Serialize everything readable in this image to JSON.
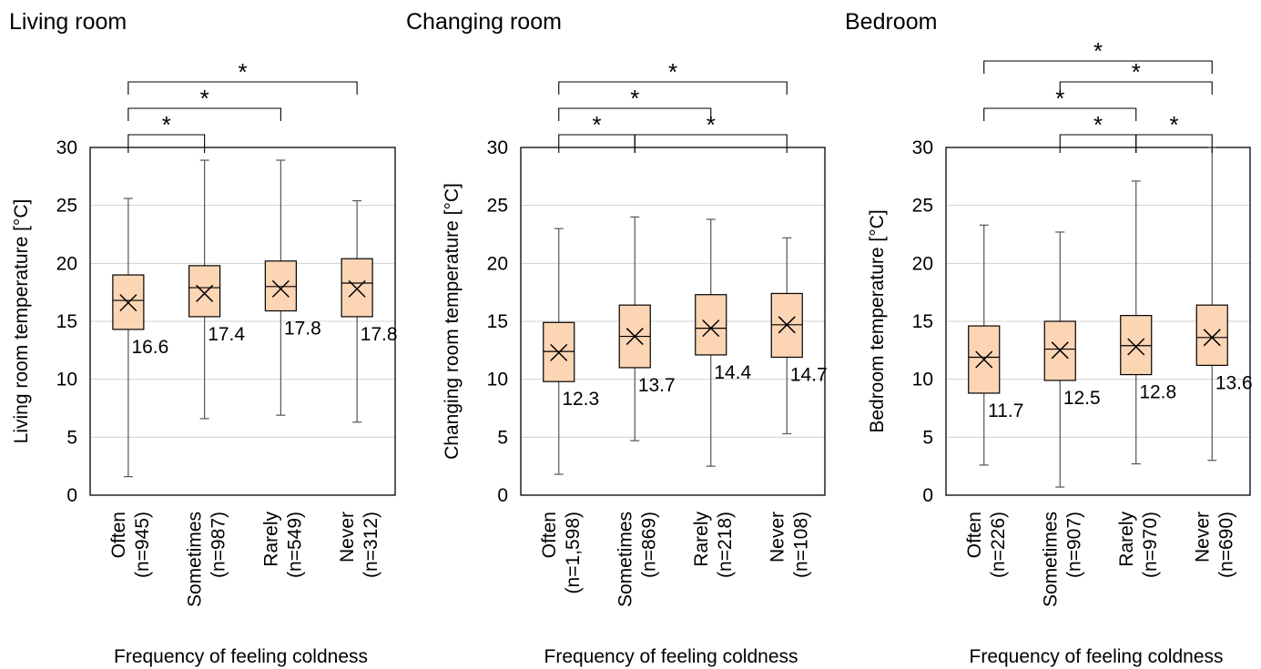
{
  "chart_data": [
    {
      "type": "box",
      "title": "Living room",
      "ylabel": "Living room temperature [°C]",
      "xlabel": "Frequency of feeling coldness",
      "ylim": [
        0,
        30
      ],
      "yticks": [
        "0",
        "5",
        "10",
        "15",
        "20",
        "25",
        "30"
      ],
      "grid": true,
      "categories": [
        {
          "name": "Often",
          "n": "(n=945)",
          "min": 1.6,
          "q1": 14.3,
          "median": 16.8,
          "q3": 19.0,
          "max": 25.6,
          "mean": 16.6,
          "mean_label": "16.6"
        },
        {
          "name": "Sometimes",
          "n": "(n=987)",
          "min": 6.6,
          "q1": 15.4,
          "median": 17.9,
          "q3": 19.8,
          "max": 28.9,
          "mean": 17.4,
          "mean_label": "17.4"
        },
        {
          "name": "Rarely",
          "n": "(n=549)",
          "min": 6.9,
          "q1": 15.9,
          "median": 18.0,
          "q3": 20.2,
          "max": 28.9,
          "mean": 17.8,
          "mean_label": "17.8"
        },
        {
          "name": "Never",
          "n": "(n=312)",
          "min": 6.3,
          "q1": 15.4,
          "median": 18.3,
          "q3": 20.4,
          "max": 25.4,
          "mean": 17.8,
          "mean_label": "17.8"
        }
      ],
      "significance": [
        {
          "from": 0,
          "to": 1,
          "label": "*"
        },
        {
          "from": 0,
          "to": 2,
          "label": "*"
        },
        {
          "from": 0,
          "to": 3,
          "label": "*"
        }
      ]
    },
    {
      "type": "box",
      "title": "Changing room",
      "ylabel": "Changing room temperature [°C]",
      "xlabel": "Frequency of feeling coldness",
      "ylim": [
        0,
        30
      ],
      "yticks": [
        "0",
        "5",
        "10",
        "15",
        "20",
        "25",
        "30"
      ],
      "grid": true,
      "categories": [
        {
          "name": "Often",
          "n": "(n=1,598)",
          "min": 1.8,
          "q1": 9.8,
          "median": 12.4,
          "q3": 14.9,
          "max": 23.0,
          "mean": 12.3,
          "mean_label": "12.3"
        },
        {
          "name": "Sometimes",
          "n": "(n=869)",
          "min": 4.7,
          "q1": 11.0,
          "median": 13.7,
          "q3": 16.4,
          "max": 24.0,
          "mean": 13.7,
          "mean_label": "13.7"
        },
        {
          "name": "Rarely",
          "n": "(n=218)",
          "min": 2.5,
          "q1": 12.1,
          "median": 14.4,
          "q3": 17.3,
          "max": 23.8,
          "mean": 14.4,
          "mean_label": "14.4"
        },
        {
          "name": "Never",
          "n": "(n=108)",
          "min": 5.3,
          "q1": 11.9,
          "median": 14.7,
          "q3": 17.4,
          "max": 22.2,
          "mean": 14.7,
          "mean_label": "14.7"
        }
      ],
      "significance": [
        {
          "from": 0,
          "to": 1,
          "label": "*"
        },
        {
          "from": 0,
          "to": 2,
          "label": "*"
        },
        {
          "from": 0,
          "to": 3,
          "label": "*"
        },
        {
          "from": 1,
          "to": 3,
          "label": "*"
        }
      ]
    },
    {
      "type": "box",
      "title": "Bedroom",
      "ylabel": "Bedroom temperature [°C]",
      "xlabel": "Frequency of feeling coldness",
      "ylim": [
        0,
        30
      ],
      "yticks": [
        "0",
        "5",
        "10",
        "15",
        "20",
        "25",
        "30"
      ],
      "grid": true,
      "categories": [
        {
          "name": "Often",
          "n": "(n=226)",
          "min": 2.6,
          "q1": 8.8,
          "median": 11.9,
          "q3": 14.6,
          "max": 23.3,
          "mean": 11.7,
          "mean_label": "11.7"
        },
        {
          "name": "Sometimes",
          "n": "(n=907)",
          "min": 0.7,
          "q1": 9.9,
          "median": 12.6,
          "q3": 15.0,
          "max": 22.7,
          "mean": 12.5,
          "mean_label": "12.5"
        },
        {
          "name": "Rarely",
          "n": "(n=970)",
          "min": 2.7,
          "q1": 10.4,
          "median": 12.9,
          "q3": 15.5,
          "max": 27.1,
          "mean": 12.8,
          "mean_label": "12.8"
        },
        {
          "name": "Never",
          "n": "(n=690)",
          "min": 3.0,
          "q1": 11.2,
          "median": 13.6,
          "q3": 16.4,
          "max": 30.0,
          "mean": 13.6,
          "mean_label": "13.6"
        }
      ],
      "significance": [
        {
          "from": 0,
          "to": 2,
          "label": "*"
        },
        {
          "from": 0,
          "to": 3,
          "label": "*"
        },
        {
          "from": 1,
          "to": 2,
          "label": "*"
        },
        {
          "from": 1,
          "to": 3,
          "label": "*"
        },
        {
          "from": 2,
          "to": 3,
          "label": "*"
        }
      ]
    }
  ],
  "colors": {
    "box_fill": "#fcd5b5",
    "box_stroke": "#000000",
    "whisker": "#555555",
    "grid": "#d0d0d0",
    "axis": "#000000"
  }
}
